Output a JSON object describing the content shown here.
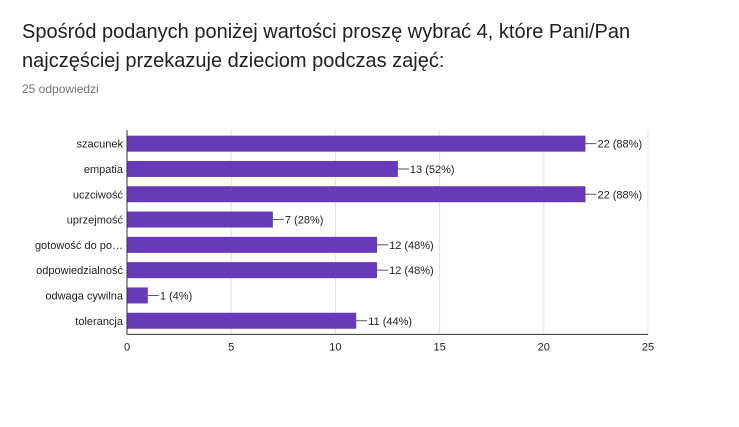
{
  "question": {
    "title": "Spośród podanych poniżej wartości proszę wybrać 4, które Pani/Pan najczęściej przekazuje dzieciom podczas zajęć:",
    "response_count": "25 odpowiedzi"
  },
  "colors": {
    "bar": "#673ab7",
    "gridline": "#e0e0e0",
    "axis": "#333333"
  },
  "chart_data": {
    "type": "bar",
    "orientation": "horizontal",
    "categories": [
      "szacunek",
      "empatia",
      "uczciwość",
      "uprzejmość",
      "gotowość do po…",
      "odpowiedzialność",
      "odwaga cywilna",
      "tolerancja"
    ],
    "values": [
      22,
      13,
      22,
      7,
      12,
      12,
      1,
      11
    ],
    "data_labels": [
      "22 (88%)",
      "13 (52%)",
      "22 (88%)",
      "7 (28%)",
      "12 (48%)",
      "12 (48%)",
      "1 (4%)",
      "11 (44%)"
    ],
    "xlim": [
      0,
      25
    ],
    "xticks": [
      0,
      5,
      10,
      15,
      20,
      25
    ],
    "grid": true
  }
}
